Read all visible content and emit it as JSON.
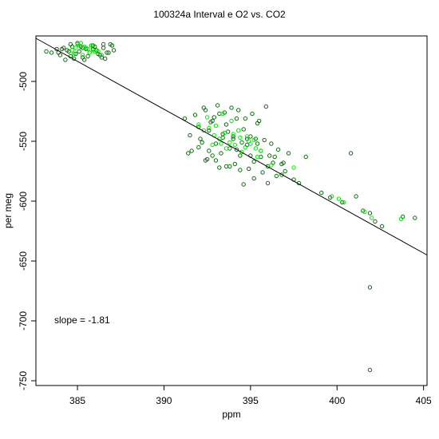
{
  "chart_data": {
    "type": "scatter",
    "title": "100324a   Interval e O2 vs. CO2",
    "xlabel": "ppm",
    "ylabel": "per meg",
    "xlim": [
      382.6,
      405.2
    ],
    "ylim": [
      -754,
      -462
    ],
    "x_ticks": [
      385,
      390,
      395,
      400,
      405
    ],
    "y_ticks": [
      -500,
      -550,
      -600,
      -650,
      -700,
      -750
    ],
    "annotation": "slope =  -1.81",
    "fit_line": {
      "slope": -1.81,
      "x": [
        382.6,
        405.2
      ],
      "y": [
        -464,
        -645
      ]
    },
    "colors": {
      "dark": "#0b6b0b",
      "light": "#00e600",
      "axis": "#000000"
    },
    "grid": false,
    "legend": "none",
    "series": [
      {
        "color": "#0b6b0b",
        "x": [
          383.2,
          383.5,
          383.8,
          384.0,
          384.2,
          384.4,
          384.6,
          384.7,
          384.9,
          385.1,
          385.3,
          385.5,
          385.7,
          385.9,
          386.1,
          386.3,
          386.5,
          386.7,
          386.9,
          387.1,
          384.3,
          384.8,
          385.2,
          385.6,
          386.0,
          386.4,
          386.8,
          387.0,
          384.5,
          385.0,
          385.4,
          385.8,
          386.2,
          386.6,
          383.9,
          384.1,
          384.6,
          385.3,
          385.9,
          386.5,
          391.2,
          391.5,
          391.8,
          392.0,
          392.2,
          392.4,
          392.6,
          392.8,
          393.0,
          393.2,
          393.4,
          393.6,
          393.8,
          394.0,
          394.2,
          394.4,
          394.6,
          394.8,
          395.0,
          395.2,
          395.4,
          395.6,
          395.8,
          396.0,
          396.2,
          396.4,
          396.6,
          396.8,
          397.0,
          397.2,
          391.6,
          392.1,
          392.5,
          392.9,
          393.3,
          393.7,
          394.1,
          394.5,
          394.9,
          395.3,
          395.7,
          396.1,
          396.5,
          396.9,
          397.5,
          392.3,
          392.7,
          393.1,
          393.5,
          393.9,
          394.3,
          394.7,
          395.1,
          395.5,
          395.9,
          392.0,
          392.8,
          393.6,
          394.4,
          395.2,
          396.0,
          396.8,
          391.4,
          393.0,
          394.6,
          395.6,
          396.3,
          397.8,
          398.2,
          399.1,
          399.6,
          400.3,
          400.8,
          401.1,
          401.5,
          401.9,
          402.2,
          402.6,
          403.8,
          404.5,
          401.9,
          401.9,
          392.4,
          393.4,
          394.2,
          395.4,
          393.8,
          394.8,
          392.6,
          393.2,
          394.0,
          395.0
        ],
        "y": [
          -475,
          -476,
          -473,
          -478,
          -472,
          -474,
          -479,
          -471,
          -477,
          -475,
          -480,
          -473,
          -476,
          -470,
          -474,
          -478,
          -472,
          -476,
          -469,
          -474,
          -482,
          -481,
          -471,
          -479,
          -471,
          -480,
          -476,
          -470,
          -475,
          -468,
          -482,
          -470,
          -477,
          -481,
          -476,
          -473,
          -469,
          -472,
          -473,
          -469,
          -531,
          -545,
          -528,
          -538,
          -551,
          -524,
          -541,
          -533,
          -552,
          -527,
          -544,
          -536,
          -556,
          -548,
          -531,
          -562,
          -540,
          -553,
          -546,
          -567,
          -535,
          -558,
          -549,
          -571,
          -552,
          -563,
          -557,
          -569,
          -575,
          -560,
          -558,
          -548,
          -565,
          -530,
          -560,
          -542,
          -569,
          -551,
          -573,
          -548,
          -576,
          -562,
          -579,
          -568,
          -582,
          -522,
          -534,
          -520,
          -526,
          -522,
          -524,
          -531,
          -527,
          -533,
          -521,
          -555,
          -562,
          -571,
          -574,
          -581,
          -585,
          -578,
          -560,
          -566,
          -586,
          -563,
          -568,
          -585,
          -563,
          -593,
          -597,
          -601,
          -560,
          -596,
          -608,
          -610,
          -617,
          -621,
          -613,
          -614,
          -672,
          -741,
          -566,
          -547,
          -557,
          -552,
          -571,
          -548,
          -558,
          -572,
          -546,
          -562
        ]
      },
      {
        "color": "#00e600",
        "x": [
          384.7,
          384.9,
          385.1,
          385.2,
          385.4,
          385.6,
          385.8,
          386.0,
          385.3,
          385.5,
          385.7,
          385.9,
          384.8,
          385.0,
          386.2,
          386.4,
          392.0,
          392.3,
          392.6,
          392.9,
          393.2,
          393.5,
          393.8,
          394.1,
          394.4,
          394.7,
          395.0,
          395.3,
          395.6,
          392.5,
          393.0,
          393.4,
          393.9,
          394.3,
          394.8,
          395.2,
          392.8,
          393.6,
          394.5,
          395.4,
          393.3,
          394.0,
          394.9,
          396.2,
          397.5,
          399.7,
          400.4,
          401.6,
          402.0,
          403.7,
          400.1
        ],
        "y": [
          -474,
          -472,
          -470,
          -468,
          -471,
          -473,
          -470,
          -475,
          -478,
          -472,
          -476,
          -474,
          -477,
          -469,
          -475,
          -478,
          -536,
          -541,
          -539,
          -545,
          -548,
          -543,
          -551,
          -553,
          -547,
          -555,
          -552,
          -556,
          -558,
          -530,
          -537,
          -527,
          -533,
          -541,
          -546,
          -549,
          -553,
          -556,
          -559,
          -563,
          -552,
          -544,
          -550,
          -570,
          -572,
          -596,
          -601,
          -609,
          -614,
          -615,
          -598
        ]
      }
    ]
  }
}
